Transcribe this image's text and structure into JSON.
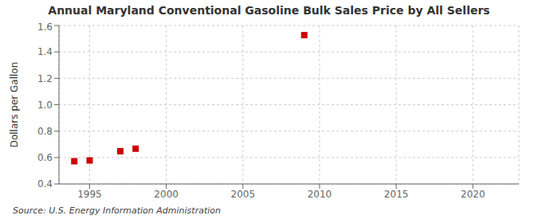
{
  "chart_data": {
    "type": "scatter",
    "title": "Annual Maryland Conventional Gasoline Bulk Sales Price by All Sellers",
    "ylabel": "Dollars per Gallon",
    "annotations": [
      "Source: U.S. Energy Information Administration"
    ],
    "x": [
      1994,
      1995,
      1997,
      1998,
      2009
    ],
    "values": [
      0.572,
      0.578,
      0.648,
      0.667,
      1.527
    ],
    "color": "#cc0000",
    "marker": "square",
    "xlim": [
      1993,
      2023
    ],
    "xticks": [
      1995,
      2000,
      2005,
      2010,
      2015,
      2020
    ],
    "ylim": [
      0.4,
      1.6
    ],
    "yticks": [
      0.4,
      0.6,
      0.8,
      {
        "value": 1.0,
        "label": "1.0"
      },
      1.2,
      1.4,
      1.6
    ],
    "grid": true
  }
}
